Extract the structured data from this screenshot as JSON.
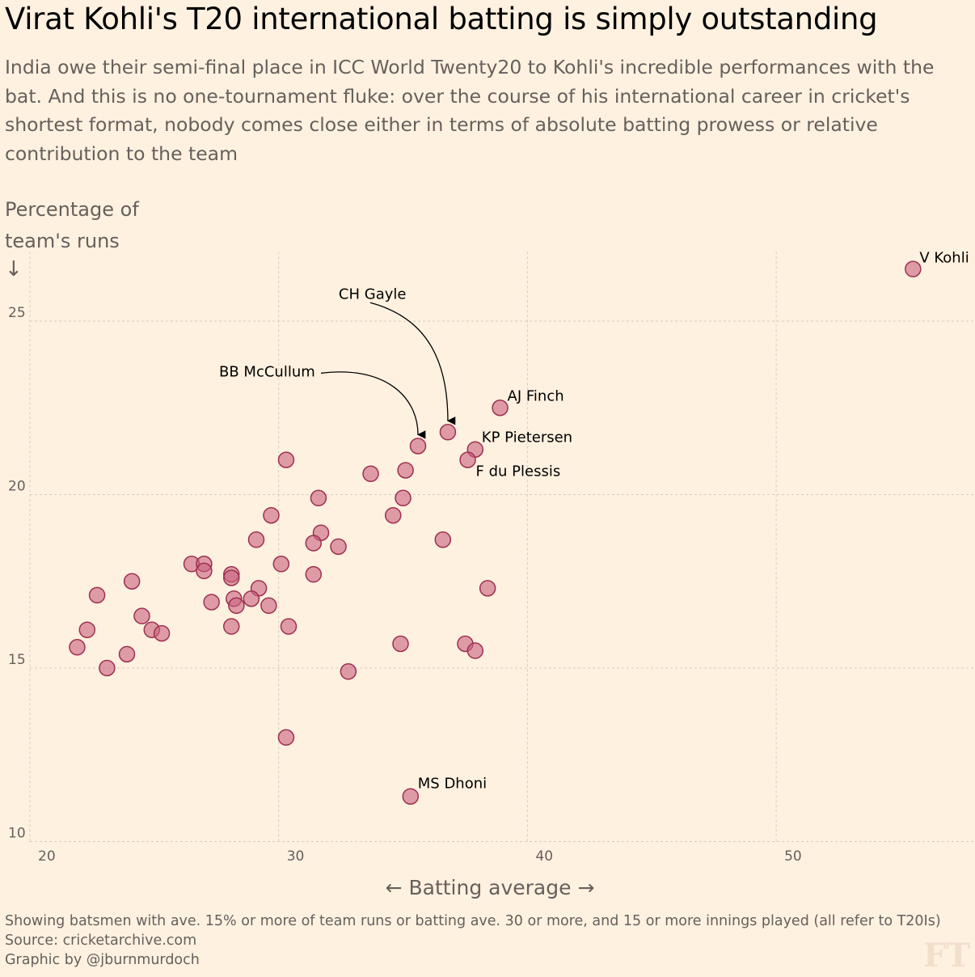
{
  "title": "Virat Kohli's T20 international batting is simply outstanding",
  "subtitle": "India owe their semi-final place in ICC World Twenty20 to Kohli's incredible performances with the bat. And this is no one-tournament fluke: over the course of his international career in cricket's shortest format, nobody comes close either in terms of absolute batting prowess or relative contribution to the team",
  "footer": {
    "note": "Showing batsmen with ave. 15% or more of team runs or batting ave. 30 or more, and 15 or more innings played (all refer to T20Is)",
    "source": "Source: cricketarchive.com",
    "credit": "Graphic by @jburnmurdoch"
  },
  "logo": "FT",
  "colors": {
    "background": "#fff1e0",
    "dot_fill": "#c8627e",
    "dot_stroke": "#9e2f50",
    "grid": "#d9cbbc"
  },
  "chart_data": {
    "type": "scatter",
    "title": "Virat Kohli's T20 international batting is simply outstanding",
    "xlabel": "← Batting average →",
    "ylabel": "Percentage of team's runs",
    "ylabel_arrow": "↓",
    "xlim": [
      20,
      58
    ],
    "ylim": [
      10,
      27
    ],
    "xticks": [
      "20",
      "30",
      "40",
      "50"
    ],
    "yticks": [
      "10",
      "15",
      "20",
      "25"
    ],
    "grid": true,
    "labeled_points": [
      {
        "name": "V Kohli",
        "x": 55.5,
        "y": 26.5
      },
      {
        "name": "CH Gayle",
        "x": 36.8,
        "y": 21.8,
        "arrow": true
      },
      {
        "name": "BB McCullum",
        "x": 35.6,
        "y": 21.4,
        "arrow": true
      },
      {
        "name": "AJ Finch",
        "x": 38.9,
        "y": 22.5
      },
      {
        "name": "KP Pietersen",
        "x": 37.9,
        "y": 21.3
      },
      {
        "name": "F du Plessis",
        "x": 37.6,
        "y": 21.0
      },
      {
        "name": "MS Dhoni",
        "x": 35.3,
        "y": 11.3
      }
    ],
    "points": [
      [
        30.3,
        21.0
      ],
      [
        33.7,
        20.6
      ],
      [
        35.1,
        20.7
      ],
      [
        35.0,
        19.9
      ],
      [
        31.6,
        19.9
      ],
      [
        34.6,
        19.4
      ],
      [
        29.7,
        19.4
      ],
      [
        31.7,
        18.9
      ],
      [
        29.1,
        18.7
      ],
      [
        31.4,
        18.6
      ],
      [
        36.6,
        18.7
      ],
      [
        32.4,
        18.5
      ],
      [
        26.5,
        18.0
      ],
      [
        27.0,
        18.0
      ],
      [
        27.0,
        17.8
      ],
      [
        30.1,
        18.0
      ],
      [
        28.1,
        17.7
      ],
      [
        28.1,
        17.6
      ],
      [
        31.4,
        17.7
      ],
      [
        24.1,
        17.5
      ],
      [
        22.7,
        17.1
      ],
      [
        38.4,
        17.3
      ],
      [
        29.2,
        17.3
      ],
      [
        28.2,
        17.0
      ],
      [
        28.9,
        17.0
      ],
      [
        27.3,
        16.9
      ],
      [
        28.3,
        16.8
      ],
      [
        29.6,
        16.8
      ],
      [
        24.5,
        16.5
      ],
      [
        22.3,
        16.1
      ],
      [
        24.9,
        16.1
      ],
      [
        25.3,
        16.0
      ],
      [
        28.1,
        16.2
      ],
      [
        30.4,
        16.2
      ],
      [
        21.9,
        15.6
      ],
      [
        23.9,
        15.4
      ],
      [
        23.1,
        15.0
      ],
      [
        34.9,
        15.7
      ],
      [
        37.5,
        15.7
      ],
      [
        37.9,
        15.5
      ],
      [
        32.8,
        14.9
      ],
      [
        30.3,
        13.0
      ]
    ]
  }
}
